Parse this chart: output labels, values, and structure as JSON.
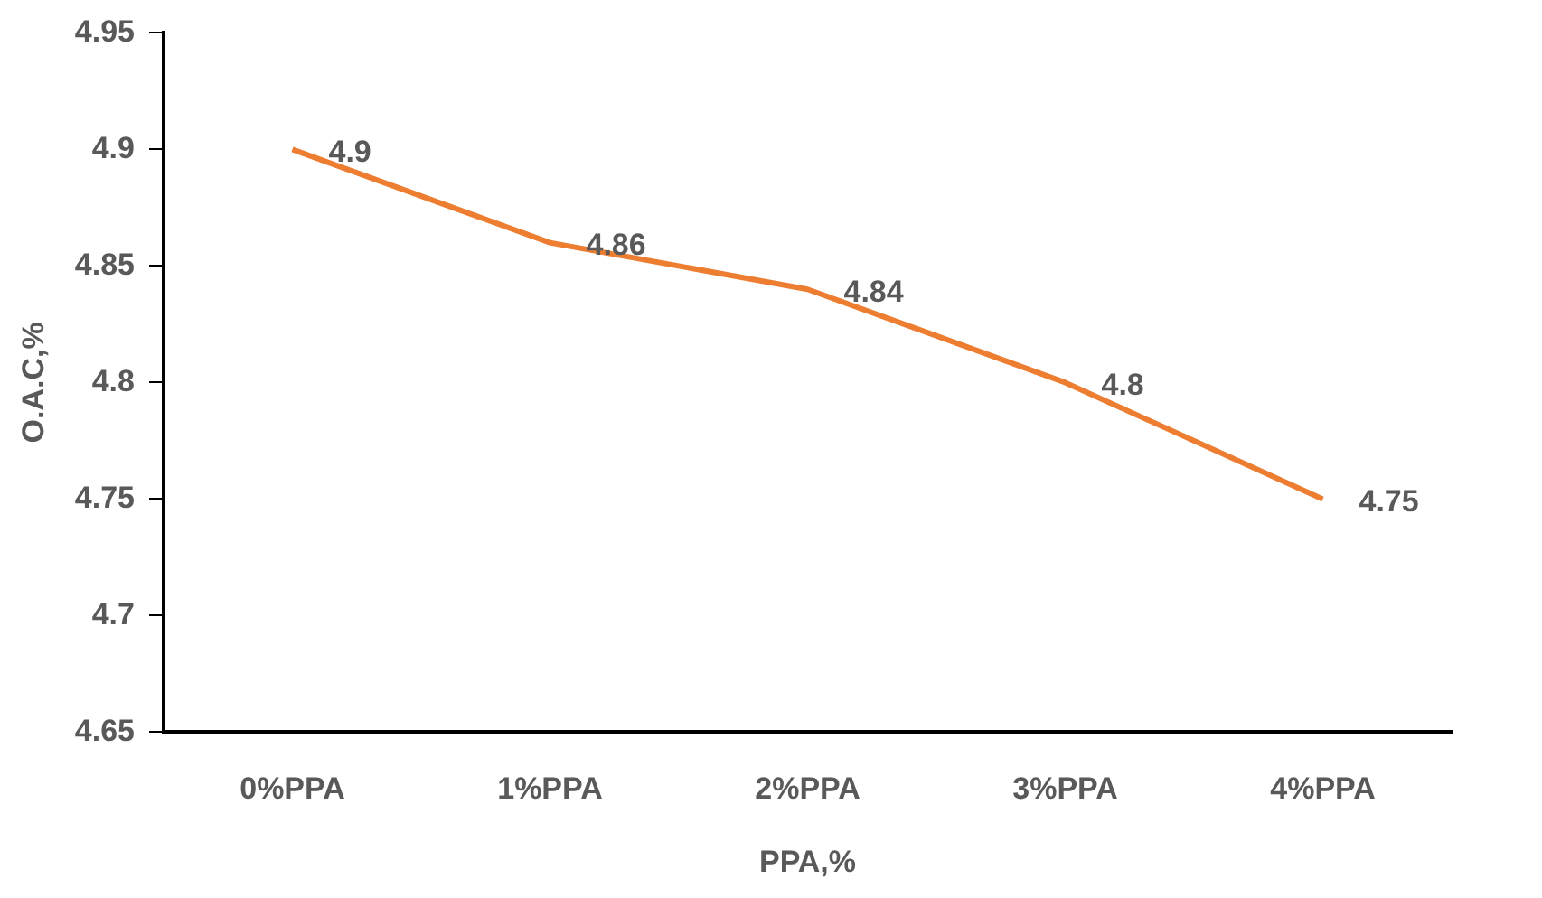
{
  "chart_data": {
    "type": "line",
    "xlabel": "PPA,%",
    "ylabel": "O.A.C,%",
    "categories": [
      "0%PPA",
      "1%PPA",
      "2%PPA",
      "3%PPA",
      "4%PPA"
    ],
    "series": [
      {
        "color": "#ed7d31",
        "values": [
          4.9,
          4.86,
          4.84,
          4.8,
          4.75
        ]
      }
    ],
    "ylim": [
      4.65,
      4.95
    ],
    "yticks": [
      4.65,
      4.7,
      4.75,
      4.8,
      4.85,
      4.9,
      4.95
    ],
    "grid": false,
    "legend": false,
    "marker": "none",
    "line_style": "solid",
    "data_labels": true
  }
}
